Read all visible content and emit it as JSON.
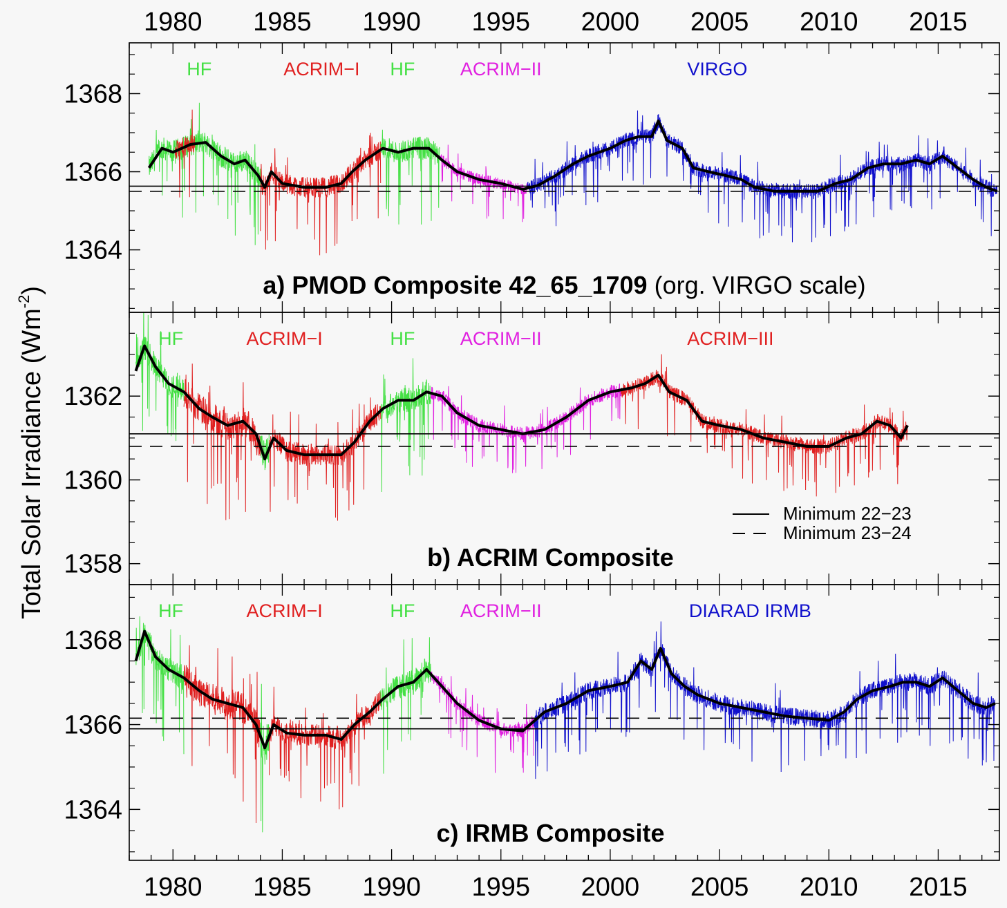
{
  "colors": {
    "HF": "#44e044",
    "ACRIM-I": "#e02020",
    "ACRIM-II": "#e020e0",
    "ACRIM-III": "#e02020",
    "VIRGO": "#1010cc",
    "DIARAD IRMB": "#1010cc",
    "composite": "#000000",
    "background": "#f7f7f7"
  },
  "chart_data": {
    "type": "line",
    "y_axis_label": "Total Solar Irradiance (Wm",
    "y_axis_label_sup": "-2",
    "y_axis_label_end": ")",
    "x_ticks": [
      "1980",
      "1985",
      "1990",
      "1995",
      "2000",
      "2005",
      "2010",
      "2015"
    ],
    "x_tick_values": [
      1980,
      1985,
      1990,
      1995,
      2000,
      2005,
      2010,
      2015
    ],
    "xlim": [
      1978.0,
      2017.8
    ],
    "legend": {
      "placement": "right",
      "entries": [
        {
          "style": "solid",
          "label": "Minimum 22−23"
        },
        {
          "style": "dashed",
          "label": "Minimum 23−24"
        }
      ]
    },
    "panels": [
      {
        "id": "a",
        "title_bold": "a) PMOD Composite 42_65_1709",
        "title_normal": " (org. VIRGO scale)",
        "ylim": [
          1362.4,
          1369.3
        ],
        "y_ticks": [
          1364,
          1366,
          1368
        ],
        "y_tick_labels": [
          "1364",
          "1366",
          "1368"
        ],
        "min_22_23": 1365.63,
        "min_23_24": 1365.5,
        "instrument_labels": [
          {
            "text": "HF",
            "x": 1981.2,
            "key": "HF"
          },
          {
            "text": "ACRIM−I",
            "x": 1986.8,
            "key": "ACRIM-I"
          },
          {
            "text": "HF",
            "x": 1990.5,
            "key": "HF"
          },
          {
            "text": "ACRIM−II",
            "x": 1995.0,
            "key": "ACRIM-II"
          },
          {
            "text": "VIRGO",
            "x": 2004.9,
            "key": "VIRGO"
          }
        ],
        "segments": [
          {
            "key": "HF",
            "start": 1978.9,
            "end": 1984.0,
            "noise": 0.9
          },
          {
            "key": "ACRIM-I",
            "start": 1980.1,
            "end": 1981.0,
            "noise": 0.8
          },
          {
            "key": "ACRIM-I",
            "start": 1984.0,
            "end": 1989.5,
            "noise": 0.8
          },
          {
            "key": "HF",
            "start": 1989.5,
            "end": 1992.2,
            "noise": 0.9
          },
          {
            "key": "ACRIM-II",
            "start": 1992.2,
            "end": 1996.2,
            "noise": 0.45
          },
          {
            "key": "VIRGO",
            "start": 1996.2,
            "end": 2017.7,
            "noise": 0.6
          }
        ],
        "composite": [
          [
            1978.9,
            1366.1
          ],
          [
            1979.5,
            1366.6
          ],
          [
            1980.0,
            1366.5
          ],
          [
            1980.8,
            1366.7
          ],
          [
            1981.5,
            1366.75
          ],
          [
            1982.2,
            1366.4
          ],
          [
            1982.8,
            1366.2
          ],
          [
            1983.3,
            1366.3
          ],
          [
            1983.9,
            1365.9
          ],
          [
            1984.2,
            1365.6
          ],
          [
            1984.5,
            1366.0
          ],
          [
            1985.0,
            1365.7
          ],
          [
            1986.0,
            1365.6
          ],
          [
            1987.0,
            1365.6
          ],
          [
            1987.7,
            1365.7
          ],
          [
            1988.2,
            1366.0
          ],
          [
            1988.8,
            1366.3
          ],
          [
            1989.6,
            1366.6
          ],
          [
            1990.3,
            1366.5
          ],
          [
            1991.0,
            1366.6
          ],
          [
            1991.7,
            1366.6
          ],
          [
            1992.3,
            1366.3
          ],
          [
            1993.0,
            1366.0
          ],
          [
            1994.0,
            1365.8
          ],
          [
            1995.0,
            1365.7
          ],
          [
            1996.0,
            1365.55
          ],
          [
            1996.7,
            1365.65
          ],
          [
            1997.5,
            1365.9
          ],
          [
            1998.3,
            1366.2
          ],
          [
            1999.0,
            1366.4
          ],
          [
            2000.0,
            1366.6
          ],
          [
            2000.7,
            1366.8
          ],
          [
            2001.3,
            1366.9
          ],
          [
            2001.9,
            1366.9
          ],
          [
            2002.2,
            1367.3
          ],
          [
            2002.6,
            1366.8
          ],
          [
            2003.3,
            1366.6
          ],
          [
            2003.8,
            1366.1
          ],
          [
            2004.5,
            1366.0
          ],
          [
            2005.3,
            1365.9
          ],
          [
            2006.0,
            1365.8
          ],
          [
            2006.6,
            1365.6
          ],
          [
            2007.5,
            1365.5
          ],
          [
            2008.5,
            1365.5
          ],
          [
            2009.5,
            1365.5
          ],
          [
            2010.3,
            1365.7
          ],
          [
            2011.0,
            1365.8
          ],
          [
            2011.8,
            1366.1
          ],
          [
            2012.5,
            1366.2
          ],
          [
            2013.3,
            1366.2
          ],
          [
            2014.0,
            1366.3
          ],
          [
            2014.6,
            1366.2
          ],
          [
            2015.2,
            1366.4
          ],
          [
            2015.9,
            1366.1
          ],
          [
            2016.6,
            1365.8
          ],
          [
            2017.2,
            1365.6
          ],
          [
            2017.7,
            1365.5
          ]
        ]
      },
      {
        "id": "b",
        "title_bold": "b) ACRIM Composite",
        "title_normal": "",
        "ylim": [
          1357.5,
          1364.0
        ],
        "y_ticks": [
          1358,
          1360,
          1362
        ],
        "y_tick_labels": [
          "1358",
          "1360",
          "1362"
        ],
        "min_22_23": 1361.1,
        "min_23_24": 1360.8,
        "instrument_labels": [
          {
            "text": "HF",
            "x": 1979.9,
            "key": "HF"
          },
          {
            "text": "ACRIM−I",
            "x": 1985.1,
            "key": "ACRIM-I"
          },
          {
            "text": "HF",
            "x": 1990.5,
            "key": "HF"
          },
          {
            "text": "ACRIM−II",
            "x": 1995.0,
            "key": "ACRIM-II"
          },
          {
            "text": "ACRIM−III",
            "x": 2005.5,
            "key": "ACRIM-III"
          }
        ],
        "segments": [
          {
            "key": "HF",
            "start": 1978.3,
            "end": 1980.5,
            "noise": 0.9
          },
          {
            "key": "ACRIM-I",
            "start": 1980.5,
            "end": 1984.0,
            "noise": 1.1
          },
          {
            "key": "HF",
            "start": 1984.0,
            "end": 1984.4,
            "noise": 1.2
          },
          {
            "key": "ACRIM-I",
            "start": 1984.4,
            "end": 1989.5,
            "noise": 0.8
          },
          {
            "key": "HF",
            "start": 1989.5,
            "end": 1991.8,
            "noise": 0.9
          },
          {
            "key": "ACRIM-II",
            "start": 1991.8,
            "end": 2000.5,
            "noise": 0.5
          },
          {
            "key": "ACRIM-III",
            "start": 2000.5,
            "end": 2013.6,
            "noise": 0.55
          }
        ],
        "composite": [
          [
            1978.3,
            1362.6
          ],
          [
            1978.7,
            1363.2
          ],
          [
            1979.2,
            1362.7
          ],
          [
            1979.8,
            1362.3
          ],
          [
            1980.5,
            1362.1
          ],
          [
            1981.2,
            1361.7
          ],
          [
            1981.8,
            1361.5
          ],
          [
            1982.5,
            1361.3
          ],
          [
            1983.2,
            1361.4
          ],
          [
            1983.8,
            1361.1
          ],
          [
            1984.2,
            1360.5
          ],
          [
            1984.6,
            1361.0
          ],
          [
            1985.2,
            1360.7
          ],
          [
            1986.0,
            1360.6
          ],
          [
            1987.0,
            1360.6
          ],
          [
            1987.7,
            1360.6
          ],
          [
            1988.3,
            1360.9
          ],
          [
            1989.0,
            1361.4
          ],
          [
            1989.6,
            1361.7
          ],
          [
            1990.3,
            1361.9
          ],
          [
            1991.0,
            1361.9
          ],
          [
            1991.6,
            1362.1
          ],
          [
            1992.3,
            1362.0
          ],
          [
            1993.0,
            1361.6
          ],
          [
            1994.0,
            1361.3
          ],
          [
            1995.0,
            1361.2
          ],
          [
            1996.0,
            1361.1
          ],
          [
            1997.0,
            1361.2
          ],
          [
            1998.0,
            1361.5
          ],
          [
            1999.0,
            1361.9
          ],
          [
            2000.0,
            1362.1
          ],
          [
            2001.0,
            1362.2
          ],
          [
            2001.6,
            1362.3
          ],
          [
            2002.2,
            1362.5
          ],
          [
            2002.7,
            1362.1
          ],
          [
            2003.5,
            1361.9
          ],
          [
            2004.2,
            1361.4
          ],
          [
            2005.0,
            1361.3
          ],
          [
            2006.0,
            1361.2
          ],
          [
            2007.0,
            1361.0
          ],
          [
            2008.0,
            1360.9
          ],
          [
            2009.0,
            1360.8
          ],
          [
            2010.0,
            1360.8
          ],
          [
            2010.8,
            1361.0
          ],
          [
            2011.5,
            1361.1
          ],
          [
            2012.2,
            1361.4
          ],
          [
            2012.8,
            1361.3
          ],
          [
            2013.3,
            1361.0
          ],
          [
            2013.6,
            1361.3
          ]
        ]
      },
      {
        "id": "c",
        "title_bold": "c) IRMB Composite",
        "title_normal": "",
        "ylim": [
          1362.8,
          1369.3
        ],
        "y_ticks": [
          1364,
          1366,
          1368
        ],
        "y_tick_labels": [
          "1364",
          "1366",
          "1368"
        ],
        "min_22_23": 1365.9,
        "min_23_24": 1366.15,
        "instrument_labels": [
          {
            "text": "HF",
            "x": 1979.9,
            "key": "HF"
          },
          {
            "text": "ACRIM−I",
            "x": 1985.1,
            "key": "ACRIM-I"
          },
          {
            "text": "HF",
            "x": 1990.5,
            "key": "HF"
          },
          {
            "text": "ACRIM−II",
            "x": 1995.0,
            "key": "ACRIM-II"
          },
          {
            "text": "DIARAD IRMB",
            "x": 2006.4,
            "key": "DIARAD IRMB"
          }
        ],
        "segments": [
          {
            "key": "HF",
            "start": 1978.3,
            "end": 1980.5,
            "noise": 0.9
          },
          {
            "key": "ACRIM-I",
            "start": 1980.5,
            "end": 1984.0,
            "noise": 1.1
          },
          {
            "key": "HF",
            "start": 1984.0,
            "end": 1984.4,
            "noise": 1.3
          },
          {
            "key": "ACRIM-I",
            "start": 1984.4,
            "end": 1989.5,
            "noise": 0.8
          },
          {
            "key": "HF",
            "start": 1989.5,
            "end": 1991.8,
            "noise": 0.9
          },
          {
            "key": "ACRIM-II",
            "start": 1991.8,
            "end": 1996.5,
            "noise": 0.5
          },
          {
            "key": "DIARAD IRMB",
            "start": 1996.5,
            "end": 2017.6,
            "noise": 0.65
          }
        ],
        "composite": [
          [
            1978.3,
            1367.5
          ],
          [
            1978.7,
            1368.2
          ],
          [
            1979.2,
            1367.6
          ],
          [
            1979.8,
            1367.3
          ],
          [
            1980.5,
            1367.1
          ],
          [
            1981.2,
            1366.8
          ],
          [
            1981.8,
            1366.6
          ],
          [
            1982.5,
            1366.5
          ],
          [
            1983.2,
            1366.4
          ],
          [
            1983.8,
            1366.0
          ],
          [
            1984.2,
            1365.45
          ],
          [
            1984.6,
            1366.0
          ],
          [
            1985.2,
            1365.8
          ],
          [
            1986.0,
            1365.75
          ],
          [
            1987.0,
            1365.75
          ],
          [
            1987.7,
            1365.65
          ],
          [
            1988.3,
            1366.0
          ],
          [
            1989.0,
            1366.3
          ],
          [
            1989.6,
            1366.6
          ],
          [
            1990.3,
            1366.9
          ],
          [
            1991.0,
            1367.0
          ],
          [
            1991.6,
            1367.3
          ],
          [
            1992.3,
            1366.9
          ],
          [
            1993.0,
            1366.5
          ],
          [
            1994.0,
            1366.1
          ],
          [
            1995.0,
            1365.9
          ],
          [
            1996.0,
            1365.85
          ],
          [
            1997.0,
            1366.3
          ],
          [
            1998.0,
            1366.5
          ],
          [
            1999.0,
            1366.8
          ],
          [
            2000.0,
            1366.9
          ],
          [
            2000.8,
            1367.0
          ],
          [
            2001.4,
            1367.5
          ],
          [
            2001.9,
            1367.3
          ],
          [
            2002.3,
            1367.8
          ],
          [
            2002.8,
            1367.2
          ],
          [
            2003.4,
            1366.9
          ],
          [
            2004.0,
            1366.7
          ],
          [
            2005.0,
            1366.5
          ],
          [
            2006.0,
            1366.4
          ],
          [
            2007.0,
            1366.3
          ],
          [
            2008.0,
            1366.2
          ],
          [
            2009.0,
            1366.15
          ],
          [
            2010.0,
            1366.1
          ],
          [
            2010.7,
            1366.3
          ],
          [
            2011.3,
            1366.6
          ],
          [
            2012.0,
            1366.8
          ],
          [
            2012.8,
            1366.9
          ],
          [
            2013.4,
            1367.0
          ],
          [
            2014.0,
            1367.0
          ],
          [
            2014.6,
            1366.9
          ],
          [
            2015.2,
            1367.1
          ],
          [
            2015.9,
            1366.8
          ],
          [
            2016.6,
            1366.5
          ],
          [
            2017.2,
            1366.4
          ],
          [
            2017.6,
            1366.5
          ]
        ]
      }
    ]
  }
}
